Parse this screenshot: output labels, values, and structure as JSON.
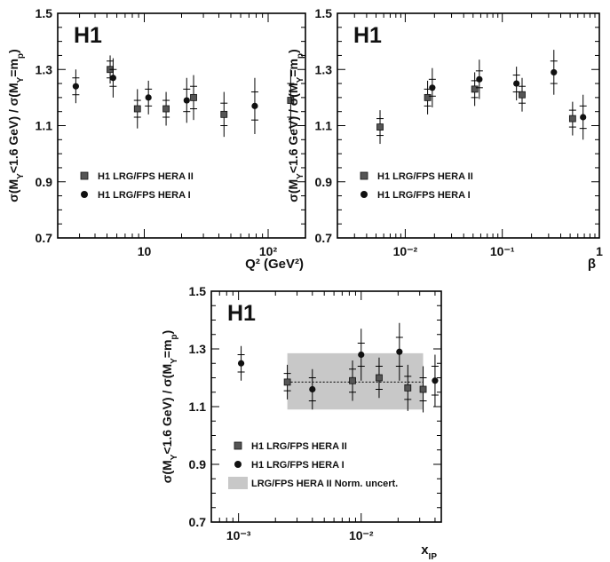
{
  "chart_data": [
    {
      "type": "scatter",
      "panel_label": "H1",
      "ylabel": "σ(M_Y<1.6 GeV) / σ(M_Y=m_p)",
      "xlabel": "Q² (GeV²)",
      "x_scale": "log",
      "xlim": [
        2,
        200
      ],
      "ylim": [
        0.7,
        1.5
      ],
      "yticks": [
        0.7,
        0.9,
        1.1,
        1.3,
        1.5
      ],
      "xtick_labels": [
        {
          "x": 10,
          "label": "10"
        },
        {
          "x": 100,
          "label": "10²"
        }
      ],
      "legend_position": "bottom-left",
      "series": [
        {
          "name": "H1 LRG/FPS HERA II",
          "marker": "square",
          "points": [
            {
              "x": 5.3,
              "y": 1.3,
              "stat": 0.03,
              "tot": 0.05
            },
            {
              "x": 8.8,
              "y": 1.16,
              "stat": 0.03,
              "tot": 0.07
            },
            {
              "x": 15,
              "y": 1.16,
              "stat": 0.03,
              "tot": 0.06
            },
            {
              "x": 25,
              "y": 1.2,
              "stat": 0.04,
              "tot": 0.08
            },
            {
              "x": 44,
              "y": 1.14,
              "stat": 0.04,
              "tot": 0.08
            },
            {
              "x": 152,
              "y": 1.19,
              "stat": 0.06,
              "tot": 0.11
            }
          ]
        },
        {
          "name": "H1 LRG/FPS HERA I",
          "marker": "circle",
          "points": [
            {
              "x": 2.8,
              "y": 1.24,
              "stat": 0.03,
              "tot": 0.06
            },
            {
              "x": 5.6,
              "y": 1.27,
              "stat": 0.03,
              "tot": 0.07
            },
            {
              "x": 10.8,
              "y": 1.2,
              "stat": 0.03,
              "tot": 0.06
            },
            {
              "x": 22,
              "y": 1.19,
              "stat": 0.04,
              "tot": 0.08
            },
            {
              "x": 78,
              "y": 1.17,
              "stat": 0.05,
              "tot": 0.1
            }
          ]
        }
      ]
    },
    {
      "type": "scatter",
      "panel_label": "H1",
      "ylabel": "σ(M_Y<1.6 GeV) / σ(M_Y=m_p)",
      "xlabel": "β",
      "x_scale": "log",
      "xlim": [
        0.002,
        1
      ],
      "ylim": [
        0.7,
        1.5
      ],
      "yticks": [
        0.7,
        0.9,
        1.1,
        1.3,
        1.5
      ],
      "xtick_labels": [
        {
          "x": 0.01,
          "label": "10⁻²"
        },
        {
          "x": 0.1,
          "label": "10⁻¹"
        },
        {
          "x": 1,
          "label": "1"
        }
      ],
      "legend_position": "bottom-left",
      "series": [
        {
          "name": "H1 LRG/FPS HERA II",
          "marker": "square",
          "points": [
            {
              "x": 0.0055,
              "y": 1.095,
              "stat": 0.03,
              "tot": 0.06
            },
            {
              "x": 0.017,
              "y": 1.2,
              "stat": 0.03,
              "tot": 0.06
            },
            {
              "x": 0.052,
              "y": 1.23,
              "stat": 0.03,
              "tot": 0.06
            },
            {
              "x": 0.16,
              "y": 1.21,
              "stat": 0.03,
              "tot": 0.06
            },
            {
              "x": 0.53,
              "y": 1.125,
              "stat": 0.03,
              "tot": 0.06
            }
          ]
        },
        {
          "name": "H1 LRG/FPS HERA I",
          "marker": "circle",
          "points": [
            {
              "x": 0.019,
              "y": 1.235,
              "stat": 0.03,
              "tot": 0.07
            },
            {
              "x": 0.058,
              "y": 1.265,
              "stat": 0.03,
              "tot": 0.07
            },
            {
              "x": 0.14,
              "y": 1.25,
              "stat": 0.03,
              "tot": 0.06
            },
            {
              "x": 0.34,
              "y": 1.29,
              "stat": 0.04,
              "tot": 0.08
            },
            {
              "x": 0.68,
              "y": 1.13,
              "stat": 0.04,
              "tot": 0.08
            }
          ]
        }
      ]
    },
    {
      "type": "scatter",
      "panel_label": "H1",
      "ylabel": "σ(M_Y<1.6 GeV) / σ(M_Y=m_p)",
      "xlabel": "x_IP",
      "x_scale": "log",
      "xlim": [
        0.0006,
        0.045
      ],
      "ylim": [
        0.7,
        1.5
      ],
      "yticks": [
        0.7,
        0.9,
        1.1,
        1.3,
        1.5
      ],
      "xtick_labels": [
        {
          "x": 0.001,
          "label": "10⁻³"
        },
        {
          "x": 0.01,
          "label": "10⁻²"
        }
      ],
      "legend_position": "bottom-left",
      "band": {
        "name": "LRG/FPS HERA II  Norm. uncert.",
        "x_from": 0.0025,
        "x_to": 0.032,
        "y_low": 1.09,
        "y_high": 1.285,
        "central": 1.185,
        "color": "#c8c8c8"
      },
      "series": [
        {
          "name": "H1 LRG/FPS HERA II",
          "marker": "square",
          "points": [
            {
              "x": 0.0025,
              "y": 1.185,
              "stat": 0.03,
              "tot": 0.06
            },
            {
              "x": 0.0085,
              "y": 1.19,
              "stat": 0.04,
              "tot": 0.07
            },
            {
              "x": 0.014,
              "y": 1.2,
              "stat": 0.04,
              "tot": 0.07
            },
            {
              "x": 0.024,
              "y": 1.165,
              "stat": 0.04,
              "tot": 0.08
            },
            {
              "x": 0.032,
              "y": 1.16,
              "stat": 0.04,
              "tot": 0.08
            }
          ]
        },
        {
          "name": "H1 LRG/FPS HERA I",
          "marker": "circle",
          "points": [
            {
              "x": 0.00105,
              "y": 1.25,
              "stat": 0.03,
              "tot": 0.06
            },
            {
              "x": 0.004,
              "y": 1.16,
              "stat": 0.04,
              "tot": 0.07
            },
            {
              "x": 0.01,
              "y": 1.28,
              "stat": 0.04,
              "tot": 0.09
            },
            {
              "x": 0.0205,
              "y": 1.29,
              "stat": 0.05,
              "tot": 0.1
            },
            {
              "x": 0.04,
              "y": 1.19,
              "stat": 0.05,
              "tot": 0.09
            }
          ]
        }
      ]
    }
  ]
}
